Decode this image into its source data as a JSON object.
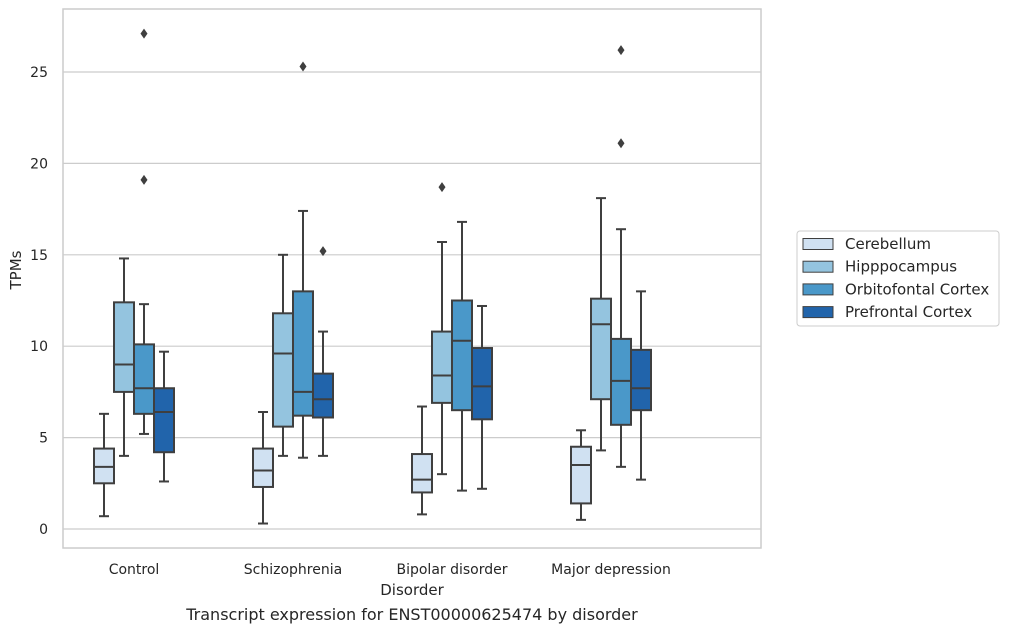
{
  "chart_data": {
    "type": "boxplot",
    "caption": "Transcript expression for ENST00000625474 by disorder",
    "xlabel": "Disorder",
    "ylabel": "TPMs",
    "ylim": [
      -1,
      28.5
    ],
    "yticks": [
      0,
      5,
      10,
      15,
      20,
      25
    ],
    "grid": "horizontal",
    "legend_position": "right",
    "categories": [
      "Control",
      "Schizophrenia",
      "Bipolar disorder",
      "Major depression"
    ],
    "series": [
      {
        "name": "Cerebellum",
        "color": "#d0e1f2",
        "boxes": [
          {
            "whisker_low": 0.7,
            "q1": 2.5,
            "median": 3.4,
            "q3": 4.4,
            "whisker_high": 6.3,
            "outliers": []
          },
          {
            "whisker_low": 0.3,
            "q1": 2.3,
            "median": 3.2,
            "q3": 4.4,
            "whisker_high": 6.4,
            "outliers": []
          },
          {
            "whisker_low": 0.8,
            "q1": 2.0,
            "median": 2.7,
            "q3": 4.1,
            "whisker_high": 6.7,
            "outliers": []
          },
          {
            "whisker_low": 0.5,
            "q1": 1.4,
            "median": 3.5,
            "q3": 4.5,
            "whisker_high": 5.4,
            "outliers": []
          }
        ]
      },
      {
        "name": "Hipppocampus",
        "color": "#94c4df",
        "boxes": [
          {
            "whisker_low": 4.0,
            "q1": 7.5,
            "median": 9.0,
            "q3": 12.4,
            "whisker_high": 14.8,
            "outliers": []
          },
          {
            "whisker_low": 4.0,
            "q1": 5.6,
            "median": 9.6,
            "q3": 11.8,
            "whisker_high": 15.0,
            "outliers": []
          },
          {
            "whisker_low": 3.0,
            "q1": 6.9,
            "median": 8.4,
            "q3": 10.8,
            "whisker_high": 15.7,
            "outliers": [
              18.7
            ]
          },
          {
            "whisker_low": 4.3,
            "q1": 7.1,
            "median": 11.2,
            "q3": 12.6,
            "whisker_high": 18.1,
            "outliers": []
          }
        ]
      },
      {
        "name": "Orbitofontal Cortex",
        "color": "#4a98c9",
        "boxes": [
          {
            "whisker_low": 5.2,
            "q1": 6.3,
            "median": 7.7,
            "q3": 10.1,
            "whisker_high": 12.3,
            "outliers": [
              19.1,
              27.1
            ]
          },
          {
            "whisker_low": 3.9,
            "q1": 6.2,
            "median": 7.5,
            "q3": 13.0,
            "whisker_high": 17.4,
            "outliers": [
              25.3
            ]
          },
          {
            "whisker_low": 2.1,
            "q1": 6.5,
            "median": 10.3,
            "q3": 12.5,
            "whisker_high": 16.8,
            "outliers": []
          },
          {
            "whisker_low": 3.4,
            "q1": 5.7,
            "median": 8.1,
            "q3": 10.4,
            "whisker_high": 16.4,
            "outliers": [
              21.1,
              26.2
            ]
          }
        ]
      },
      {
        "name": "Prefrontal Cortex",
        "color": "#2164ab",
        "boxes": [
          {
            "whisker_low": 2.6,
            "q1": 4.2,
            "median": 6.4,
            "q3": 7.7,
            "whisker_high": 9.7,
            "outliers": []
          },
          {
            "whisker_low": 4.0,
            "q1": 6.1,
            "median": 7.1,
            "q3": 8.5,
            "whisker_high": 10.8,
            "outliers": [
              15.2
            ]
          },
          {
            "whisker_low": 2.2,
            "q1": 6.0,
            "median": 7.8,
            "q3": 9.9,
            "whisker_high": 12.2,
            "outliers": []
          },
          {
            "whisker_low": 2.7,
            "q1": 6.5,
            "median": 7.7,
            "q3": 9.8,
            "whisker_high": 13.0,
            "outliers": []
          }
        ]
      }
    ]
  }
}
